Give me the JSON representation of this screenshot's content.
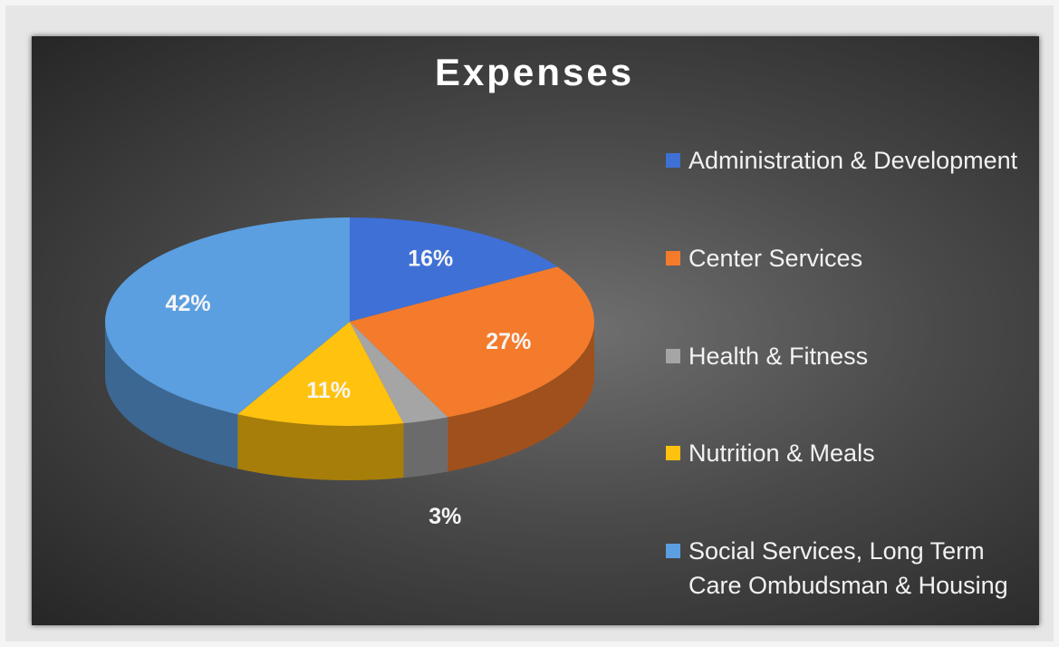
{
  "chart_data": {
    "type": "pie",
    "title": "Expenses",
    "categories": [
      "Administration & Development",
      "Center Services",
      "Health & Fitness",
      "Nutrition & Meals",
      "Social Services, Long Term Care Ombudsman & Housing"
    ],
    "values": [
      16,
      27,
      3,
      11,
      42
    ],
    "value_labels": [
      "16%",
      "27%",
      "3%",
      "11%",
      "42%"
    ],
    "colors": [
      "#3f70d6",
      "#f47b2b",
      "#a5a5a5",
      "#ffc20e",
      "#5b9fe0"
    ],
    "legend": "right"
  }
}
